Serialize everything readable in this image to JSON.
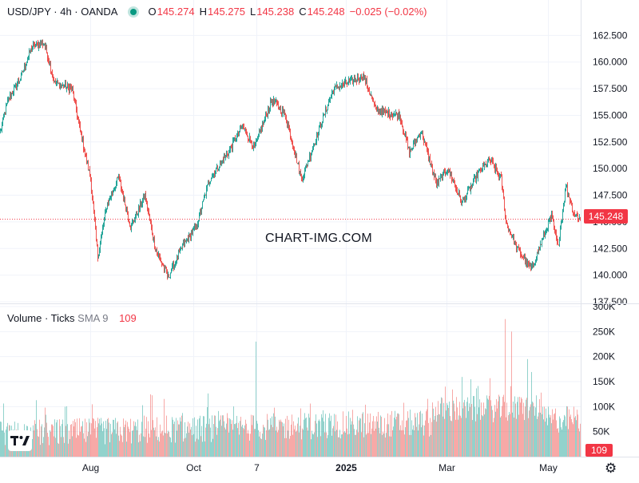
{
  "header": {
    "symbol": "USD/JPY · 4h · OANDA",
    "o_label": "O",
    "o_value": "145.274",
    "h_label": "H",
    "h_value": "145.275",
    "l_label": "L",
    "l_value": "145.238",
    "c_label": "C",
    "c_value": "145.248",
    "change": "−0.025 (−0.02%)"
  },
  "volume_legend": {
    "title": "Volume · Ticks",
    "sma_label": "SMA 9",
    "sma_value": "109"
  },
  "watermark": "CHART-IMG.COM",
  "last_price_label": "145.248",
  "last_volume_label": "109",
  "colors": {
    "up": "#26a69a",
    "down": "#ef5350",
    "price_line": "#f23645",
    "grid": "#f0f3fa",
    "axis_text": "#131722"
  },
  "icons": {
    "logo": "tradingview-logo-icon",
    "settings": "gear-icon"
  },
  "chart_data": [
    {
      "type": "candlestick",
      "symbol": "USD/JPY",
      "interval": "4h",
      "source": "OANDA",
      "y_ticks": [
        "162.500",
        "160.000",
        "157.500",
        "155.000",
        "152.500",
        "150.000",
        "147.500",
        "145.000",
        "142.500",
        "140.000",
        "137.500"
      ],
      "ylim": [
        137.5,
        163.5
      ],
      "x_ticks": [
        "Aug",
        "Oct",
        "7",
        "2025",
        "Mar",
        "May"
      ],
      "last_price": 145.248,
      "path_key_points": [
        {
          "t": 0,
          "v": 153.5
        },
        {
          "t": 10,
          "v": 156.5
        },
        {
          "t": 25,
          "v": 158.5
        },
        {
          "t": 40,
          "v": 161.5
        },
        {
          "t": 55,
          "v": 161.8
        },
        {
          "t": 68,
          "v": 158.0
        },
        {
          "t": 90,
          "v": 157.5
        },
        {
          "t": 100,
          "v": 153.5
        },
        {
          "t": 113,
          "v": 149.0
        },
        {
          "t": 122,
          "v": 141.7
        },
        {
          "t": 133,
          "v": 146.5
        },
        {
          "t": 148,
          "v": 149.2
        },
        {
          "t": 163,
          "v": 144.5
        },
        {
          "t": 181,
          "v": 147.5
        },
        {
          "t": 194,
          "v": 142.5
        },
        {
          "t": 210,
          "v": 139.8
        },
        {
          "t": 230,
          "v": 143.0
        },
        {
          "t": 245,
          "v": 144.5
        },
        {
          "t": 262,
          "v": 149.0
        },
        {
          "t": 285,
          "v": 151.5
        },
        {
          "t": 303,
          "v": 154.0
        },
        {
          "t": 318,
          "v": 152.0
        },
        {
          "t": 340,
          "v": 156.5
        },
        {
          "t": 357,
          "v": 155.0
        },
        {
          "t": 377,
          "v": 149.0
        },
        {
          "t": 403,
          "v": 154.5
        },
        {
          "t": 417,
          "v": 157.5
        },
        {
          "t": 433,
          "v": 158.0
        },
        {
          "t": 455,
          "v": 158.7
        },
        {
          "t": 470,
          "v": 155.5
        },
        {
          "t": 500,
          "v": 155.0
        },
        {
          "t": 512,
          "v": 151.5
        },
        {
          "t": 527,
          "v": 153.5
        },
        {
          "t": 546,
          "v": 148.5
        },
        {
          "t": 560,
          "v": 150.0
        },
        {
          "t": 578,
          "v": 146.8
        },
        {
          "t": 598,
          "v": 149.5
        },
        {
          "t": 613,
          "v": 150.8
        },
        {
          "t": 627,
          "v": 149.0
        },
        {
          "t": 633,
          "v": 145.0
        },
        {
          "t": 647,
          "v": 142.5
        },
        {
          "t": 665,
          "v": 140.5
        },
        {
          "t": 677,
          "v": 143.0
        },
        {
          "t": 690,
          "v": 145.5
        },
        {
          "t": 698,
          "v": 142.6
        },
        {
          "t": 708,
          "v": 148.4
        },
        {
          "t": 718,
          "v": 145.8
        },
        {
          "t": 726,
          "v": 145.25
        }
      ]
    },
    {
      "type": "bar",
      "name": "Volume · Ticks",
      "y_ticks": [
        "300K",
        "250K",
        "200K",
        "150K",
        "100K",
        "50K"
      ],
      "ylim": [
        0,
        300000
      ],
      "sma_9": 109,
      "notable_spikes": [
        {
          "t": 320,
          "v": 230000
        },
        {
          "t": 632,
          "v": 275000
        },
        {
          "t": 640,
          "v": 250000
        },
        {
          "t": 557,
          "v": 140000
        },
        {
          "t": 660,
          "v": 195000
        }
      ]
    }
  ]
}
